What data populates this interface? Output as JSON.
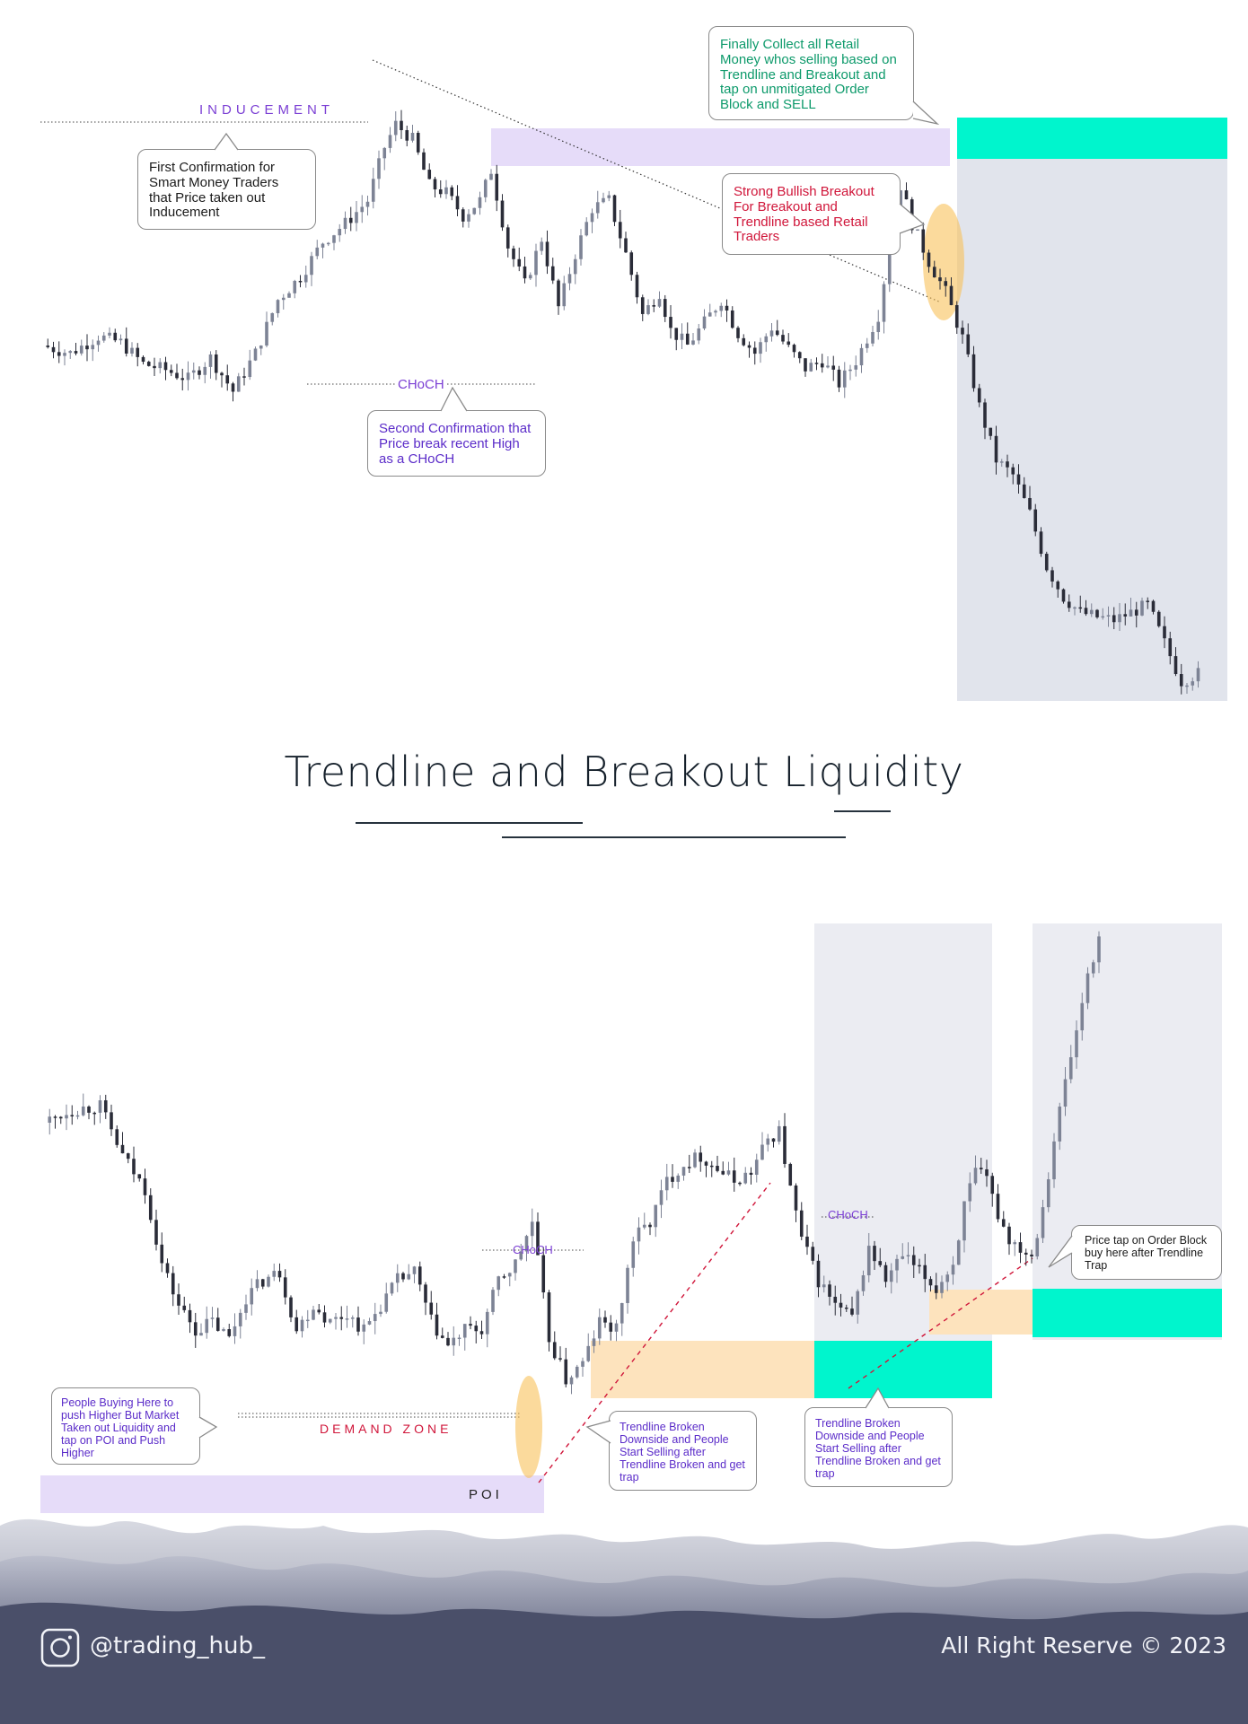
{
  "title": "Trendline and Breakout Liquidity",
  "top_chart": {
    "labels": {
      "inducement": "INDUCEMENT",
      "choch": "CHoCH"
    },
    "callouts": {
      "first_confirmation": "First Confirmation for Smart Money Traders that Price taken out Inducement",
      "second_confirmation": "Second Confirmation that Price break recent High as a CHoCH",
      "strong_bullish": "Strong Bullish Breakout For Breakout and Trendline based Retail Traders",
      "finally_collect": "Finally Collect all Retail Money whos selling based on Trendline and Breakout and tap on unmitigated Order Block and SELL"
    }
  },
  "bottom_chart": {
    "labels": {
      "choch_1": "CHoCH",
      "choch_2": "CHoCH",
      "demand_zone": "DEMAND ZONE",
      "poi": "POI"
    },
    "callouts": {
      "people_buying": "People Buying Here to push Higher But Market Taken out Liquidity and tap on POI and Push Higher",
      "trendline_broken_1": "Trendline Broken Downside and People Start Selling  after Trendline Broken and get trap",
      "trendline_broken_2": "Trendline Broken Downside and People Start Selling  after Trendline Broken and get trap",
      "price_tap": "Price tap on Order Block  buy here after Trendline Trap"
    }
  },
  "footer": {
    "handle": "@trading_hub_",
    "copyright": "All Right Reserve © 2023",
    "icon": "instagram-icon"
  },
  "colors": {
    "bull_candle": "#7d8395",
    "bear_candle": "#2a2c38",
    "lavender_zone": "#e6dcf9",
    "teal_zone": "#00f5cd",
    "peach_zone": "#fde3bd",
    "gray_zone": "#e1e4ec",
    "purple_text": "#5b2cc9",
    "green_text": "#0d9a6b",
    "red_text": "#d0163a",
    "highlight_ellipse": "#f9c25a"
  },
  "chart_data": [
    {
      "type": "candlestick",
      "series": [
        {
          "path": [
            [
              0,
              0.0
            ],
            [
              5,
              -0.05
            ],
            [
              10,
              0.06
            ],
            [
              14,
              0.02
            ],
            [
              18,
              -0.12
            ],
            [
              22,
              -0.16
            ],
            [
              26,
              -0.22
            ],
            [
              30,
              -0.08
            ],
            [
              34,
              -0.3
            ],
            [
              38,
              -0.05
            ],
            [
              42,
              0.3
            ],
            [
              46,
              0.45
            ],
            [
              50,
              0.68
            ],
            [
              54,
              0.8
            ],
            [
              58,
              0.95
            ],
            [
              61,
              1.3
            ],
            [
              63,
              1.45
            ],
            [
              66,
              1.35
            ],
            [
              69,
              1.05
            ],
            [
              72,
              1.0
            ],
            [
              75,
              0.85
            ],
            [
              78,
              0.95
            ],
            [
              80,
              1.15
            ],
            [
              83,
              0.65
            ],
            [
              86,
              0.4
            ],
            [
              89,
              0.7
            ],
            [
              92,
              0.25
            ],
            [
              95,
              0.6
            ],
            [
              98,
              0.9
            ],
            [
              101,
              0.95
            ],
            [
              104,
              0.6
            ],
            [
              107,
              0.2
            ],
            [
              110,
              0.35
            ],
            [
              112,
              0.1
            ],
            [
              115,
              0.0
            ],
            [
              118,
              0.15
            ],
            [
              121,
              0.3
            ],
            [
              124,
              0.08
            ],
            [
              127,
              -0.05
            ],
            [
              130,
              0.12
            ],
            [
              133,
              -0.02
            ],
            [
              136,
              -0.15
            ],
            [
              139,
              -0.1
            ],
            [
              142,
              -0.25
            ],
            [
              145,
              -0.1
            ],
            [
              147,
              0.05
            ],
            [
              149,
              0.2
            ],
            [
              151,
              0.65
            ],
            [
              153,
              1.05
            ],
            [
              155,
              0.8
            ],
            [
              158,
              0.55
            ],
            [
              161,
              0.35
            ],
            [
              164,
              0.05
            ],
            [
              167,
              -0.4
            ],
            [
              170,
              -0.75
            ],
            [
              173,
              -0.85
            ],
            [
              176,
              -1.1
            ],
            [
              179,
              -1.45
            ],
            [
              182,
              -1.65
            ],
            [
              185,
              -1.75
            ],
            [
              188,
              -1.78
            ],
            [
              191,
              -1.8
            ],
            [
              194,
              -1.75
            ],
            [
              197,
              -1.7
            ],
            [
              200,
              -1.95
            ],
            [
              203,
              -2.2
            ],
            [
              206,
              -2.15
            ]
          ]
        }
      ]
    },
    {
      "type": "candlestick",
      "series": [
        {
          "path": [
            [
              0,
              0.0
            ],
            [
              5,
              0.08
            ],
            [
              10,
              0.1
            ],
            [
              14,
              -0.2
            ],
            [
              18,
              -0.4
            ],
            [
              21,
              -0.85
            ],
            [
              24,
              -1.1
            ],
            [
              27,
              -1.25
            ],
            [
              30,
              -1.2
            ],
            [
              33,
              -1.3
            ],
            [
              36,
              -1.05
            ],
            [
              39,
              -0.95
            ],
            [
              42,
              -0.9
            ],
            [
              45,
              -1.25
            ],
            [
              48,
              -1.1
            ],
            [
              51,
              -1.2
            ],
            [
              54,
              -1.15
            ],
            [
              57,
              -1.25
            ],
            [
              60,
              -1.1
            ],
            [
              63,
              -0.95
            ],
            [
              66,
              -0.9
            ],
            [
              69,
              -1.2
            ],
            [
              72,
              -1.35
            ],
            [
              75,
              -1.25
            ],
            [
              78,
              -1.25
            ],
            [
              81,
              -0.95
            ],
            [
              84,
              -0.85
            ],
            [
              87,
              -0.6
            ],
            [
              90,
              -1.3
            ],
            [
              93,
              -1.55
            ],
            [
              96,
              -1.45
            ],
            [
              99,
              -1.2
            ],
            [
              102,
              -1.25
            ],
            [
              105,
              -0.7
            ],
            [
              108,
              -0.6
            ],
            [
              111,
              -0.35
            ],
            [
              114,
              -0.25
            ],
            [
              117,
              -0.2
            ],
            [
              120,
              -0.28
            ],
            [
              123,
              -0.35
            ],
            [
              126,
              -0.3
            ],
            [
              129,
              -0.1
            ],
            [
              131,
              -0.05
            ],
            [
              133,
              -0.4
            ],
            [
              135,
              -0.7
            ],
            [
              138,
              -0.95
            ],
            [
              141,
              -1.1
            ],
            [
              144,
              -1.18
            ],
            [
              147,
              -0.75
            ],
            [
              150,
              -0.95
            ],
            [
              153,
              -0.8
            ],
            [
              156,
              -0.9
            ],
            [
              159,
              -1.0
            ],
            [
              162,
              -0.85
            ],
            [
              164,
              -0.5
            ],
            [
              166,
              -0.3
            ],
            [
              168,
              -0.35
            ],
            [
              170,
              -0.55
            ],
            [
              172,
              -0.7
            ],
            [
              174,
              -0.75
            ],
            [
              176,
              -0.8
            ],
            [
              178,
              -0.5
            ],
            [
              180,
              -0.1
            ],
            [
              182,
              0.25
            ],
            [
              184,
              0.55
            ],
            [
              186,
              0.9
            ],
            [
              188,
              1.1
            ]
          ]
        }
      ]
    }
  ]
}
